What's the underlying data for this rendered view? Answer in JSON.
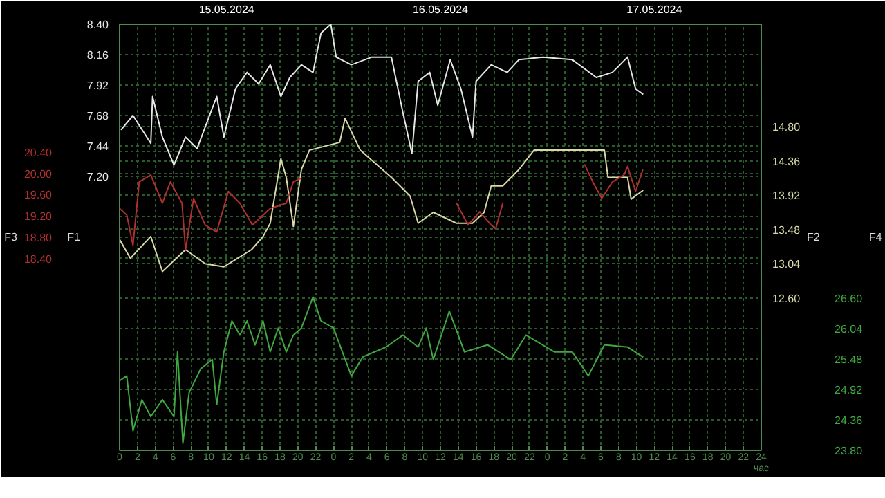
{
  "chart_data": [
    {
      "type": "line",
      "ylabel": "F1",
      "y2label": "F2",
      "xlabel": "час",
      "grid": true,
      "marker": "none",
      "line_style": "solid",
      "xlim": [
        "2024-05-15T00:00",
        "2024-05-18T00:00"
      ],
      "xticks": [
        {
          "value": "2024-05-15T00:00",
          "label": "0"
        },
        {
          "value": "2024-05-15T02:00",
          "label": "2"
        },
        {
          "value": "2024-05-15T04:00",
          "label": "4"
        },
        {
          "value": "2024-05-15T06:00",
          "label": "6"
        },
        {
          "value": "2024-05-15T08:00",
          "label": "8"
        },
        {
          "value": "2024-05-15T10:00",
          "label": "10"
        },
        {
          "value": "2024-05-15T12:00",
          "label": "12"
        },
        {
          "value": "2024-05-15T14:00",
          "label": "14"
        },
        {
          "value": "2024-05-15T16:00",
          "label": "16"
        },
        {
          "value": "2024-05-15T18:00",
          "label": "18"
        },
        {
          "value": "2024-05-15T20:00",
          "label": "20"
        },
        {
          "value": "2024-05-15T22:00",
          "label": "22"
        },
        {
          "value": "2024-05-16T00:00",
          "label": "0"
        },
        {
          "value": "2024-05-16T02:00",
          "label": "2"
        },
        {
          "value": "2024-05-16T04:00",
          "label": "4"
        },
        {
          "value": "2024-05-16T06:00",
          "label": "6"
        },
        {
          "value": "2024-05-16T08:00",
          "label": "8"
        },
        {
          "value": "2024-05-16T10:00",
          "label": "10"
        },
        {
          "value": "2024-05-16T12:00",
          "label": "12"
        },
        {
          "value": "2024-05-16T14:00",
          "label": "14"
        },
        {
          "value": "2024-05-16T16:00",
          "label": "16"
        },
        {
          "value": "2024-05-16T18:00",
          "label": "18"
        },
        {
          "value": "2024-05-16T20:00",
          "label": "20"
        },
        {
          "value": "2024-05-16T22:00",
          "label": "22"
        },
        {
          "value": "2024-05-17T00:00",
          "label": "0"
        },
        {
          "value": "2024-05-17T02:00",
          "label": "2"
        },
        {
          "value": "2024-05-17T04:00",
          "label": "4"
        },
        {
          "value": "2024-05-17T06:00",
          "label": "6"
        },
        {
          "value": "2024-05-17T08:00",
          "label": "8"
        },
        {
          "value": "2024-05-17T10:00",
          "label": "10"
        },
        {
          "value": "2024-05-17T12:00",
          "label": "12"
        },
        {
          "value": "2024-05-17T14:00",
          "label": "14"
        },
        {
          "value": "2024-05-17T16:00",
          "label": "16"
        },
        {
          "value": "2024-05-17T18:00",
          "label": "18"
        },
        {
          "value": "2024-05-17T20:00",
          "label": "20"
        },
        {
          "value": "2024-05-17T22:00",
          "label": "22"
        },
        {
          "value": "2024-05-18T00:00",
          "label": "24"
        }
      ],
      "x2lim": [
        "2024-05-15T00:00",
        "2024-05-18T00:00"
      ],
      "x2ticks": [
        {
          "value": "2024-05-15T12:00",
          "label": "15.05.2024"
        },
        {
          "value": "2024-05-16T12:00",
          "label": "16.05.2024"
        },
        {
          "value": "2024-05-17T12:00",
          "label": "17.05.2024"
        }
      ],
      "ylim": [
        5.04,
        8.4
      ],
      "yticks": [
        {
          "value": 8.4,
          "label": "8.40"
        },
        {
          "value": 8.16,
          "label": "8.16"
        },
        {
          "value": 7.92,
          "label": "7.92"
        },
        {
          "value": 7.68,
          "label": "7.68"
        },
        {
          "value": 7.44,
          "label": "7.44"
        },
        {
          "value": 7.2,
          "label": "7.20"
        }
      ],
      "y2lim": [
        10.64,
        16.12
      ],
      "y2ticks": [
        {
          "value": 14.8,
          "label": "14.80"
        },
        {
          "value": 14.36,
          "label": "14.36"
        },
        {
          "value": 13.92,
          "label": "13.92"
        },
        {
          "value": 13.48,
          "label": "13.48"
        },
        {
          "value": 13.04,
          "label": "13.04"
        },
        {
          "value": 12.6,
          "label": "12.60"
        }
      ],
      "series": [
        {
          "color": "#e6e6e6",
          "x": [
            "2024-05-15T00:12",
            "2024-05-15T01:30",
            "2024-05-15T03:30",
            "2024-05-15T03:42",
            "2024-05-15T04:48",
            "2024-05-15T06:06",
            "2024-05-15T07:24",
            "2024-05-15T08:42",
            "2024-05-15T10:54",
            "2024-05-15T11:42",
            "2024-05-15T13:00",
            "2024-05-15T14:18",
            "2024-05-15T15:36",
            "2024-05-15T16:54",
            "2024-05-15T18:06",
            "2024-05-15T19:06",
            "2024-05-15T20:24",
            "2024-05-15T21:42",
            "2024-05-15T22:36",
            "2024-05-15T23:42",
            "2024-05-16T00:18",
            "2024-05-16T02:00",
            "2024-05-16T04:18",
            "2024-05-16T06:30",
            "2024-05-16T07:48",
            "2024-05-16T08:48",
            "2024-05-16T09:30",
            "2024-05-16T10:48",
            "2024-05-16T11:42",
            "2024-05-16T13:06",
            "2024-05-16T14:18",
            "2024-05-16T15:36",
            "2024-05-16T16:00",
            "2024-05-16T17:42",
            "2024-05-16T19:30",
            "2024-05-16T20:48",
            "2024-05-16T23:30",
            "2024-05-17T02:48",
            "2024-05-17T05:30",
            "2024-05-17T07:18",
            "2024-05-17T09:00",
            "2024-05-17T09:54",
            "2024-05-17T10:42"
          ],
          "values": [
            7.57,
            7.68,
            7.46,
            7.83,
            7.51,
            7.29,
            7.51,
            7.42,
            7.83,
            7.51,
            7.89,
            8.02,
            7.93,
            8.08,
            7.83,
            7.98,
            8.08,
            8.02,
            8.33,
            8.4,
            8.14,
            8.08,
            8.14,
            8.14,
            7.7,
            7.38,
            7.95,
            8.02,
            7.76,
            8.12,
            7.89,
            7.51,
            7.95,
            8.08,
            8.02,
            8.12,
            8.14,
            8.12,
            7.98,
            8.02,
            8.14,
            7.89,
            7.85
          ]
        },
        {
          "color": "#d8d8a8",
          "axis": "y2",
          "x": [
            "2024-05-15T00:00",
            "2024-05-15T01:12",
            "2024-05-15T03:30",
            "2024-05-15T04:48",
            "2024-05-15T07:24",
            "2024-05-15T09:36",
            "2024-05-15T11:42",
            "2024-05-15T14:48",
            "2024-05-15T16:06",
            "2024-05-15T16:54",
            "2024-05-15T18:06",
            "2024-05-15T18:42",
            "2024-05-15T19:30",
            "2024-05-15T20:24",
            "2024-05-15T21:18",
            "2024-05-16T00:42",
            "2024-05-16T01:18",
            "2024-05-16T03:00",
            "2024-05-16T06:30",
            "2024-05-16T08:36",
            "2024-05-16T09:30",
            "2024-05-16T11:12",
            "2024-05-16T13:48",
            "2024-05-16T15:36",
            "2024-05-16T16:54",
            "2024-05-16T17:42",
            "2024-05-16T19:00",
            "2024-05-16T20:48",
            "2024-05-16T22:30",
            "2024-05-17T02:48",
            "2024-05-17T06:24",
            "2024-05-17T06:48",
            "2024-05-17T09:00",
            "2024-05-17T09:24",
            "2024-05-17T10:42"
          ],
          "values": [
            13.35,
            13.11,
            13.39,
            12.94,
            13.22,
            13.04,
            13.0,
            13.22,
            13.39,
            13.56,
            14.39,
            14.15,
            13.52,
            14.25,
            14.5,
            14.6,
            14.91,
            14.5,
            14.15,
            13.91,
            13.56,
            13.7,
            13.56,
            13.56,
            13.7,
            14.04,
            14.04,
            14.25,
            14.5,
            14.5,
            14.5,
            14.15,
            14.15,
            13.87,
            13.98
          ]
        }
      ]
    },
    {
      "type": "line",
      "ylabel": "F3",
      "y2label": "F4",
      "grid": true,
      "marker": "none",
      "line_style": "solid",
      "tick_labels": "y",
      "xlim": [
        "2024-05-15T00:00",
        "2024-05-18T00:00"
      ],
      "ylim": [
        14.8,
        22.8
      ],
      "yticks": [
        {
          "value": 20.4,
          "label": "20.40"
        },
        {
          "value": 20.0,
          "label": "20.00"
        },
        {
          "value": 19.6,
          "label": "19.60"
        },
        {
          "value": 19.2,
          "label": "19.20"
        },
        {
          "value": 18.8,
          "label": "18.80"
        },
        {
          "value": 18.4,
          "label": "18.40"
        }
      ],
      "y2lim": [
        23.8,
        31.64
      ],
      "y2ticks": [
        {
          "value": 26.6,
          "label": "26.60"
        },
        {
          "value": 26.04,
          "label": "26.04"
        },
        {
          "value": 25.48,
          "label": "25.48"
        },
        {
          "value": 24.92,
          "label": "24.92"
        },
        {
          "value": 24.36,
          "label": "24.36"
        },
        {
          "value": 23.8,
          "label": "23.80"
        }
      ],
      "series": [
        {
          "color": "#b03030",
          "x": [
            "2024-05-15T00:00",
            "2024-05-15T00:48",
            "2024-05-15T01:30",
            "2024-05-15T02:12",
            "2024-05-15T03:30",
            "2024-05-15T04:48",
            "2024-05-15T05:42",
            "2024-05-15T07:00",
            "2024-05-15T07:24",
            "2024-05-15T08:18",
            "2024-05-15T09:36",
            "2024-05-15T10:54",
            "2024-05-15T12:12",
            "2024-05-15T13:30",
            "2024-05-15T14:54",
            "2024-05-15T16:54",
            "2024-05-15T18:42",
            "2024-05-15T19:30",
            "2024-05-15T20:24",
            "2024-05-16T06:00",
            "2024-05-16T13:48",
            "2024-05-16T15:06",
            "2024-05-16T16:24",
            "2024-05-16T17:42",
            "2024-05-16T18:12",
            "2024-05-16T19:00",
            "2024-05-17T00:00",
            "2024-05-17T04:12",
            "2024-05-17T05:06",
            "2024-05-17T06:06",
            "2024-05-17T07:18",
            "2024-05-17T08:36",
            "2024-05-17T09:00",
            "2024-05-17T09:54",
            "2024-05-17T10:42"
          ],
          "values": [
            19.34,
            19.22,
            18.65,
            19.84,
            19.97,
            19.44,
            19.84,
            19.44,
            18.56,
            19.53,
            19.03,
            18.9,
            19.66,
            19.44,
            19.03,
            19.34,
            19.44,
            19.84,
            19.91,
            null,
            19.44,
            19.03,
            19.28,
            19.03,
            18.96,
            19.44,
            null,
            20.16,
            19.84,
            19.53,
            19.84,
            19.97,
            20.13,
            19.66,
            20.06
          ]
        },
        {
          "color": "#40a840",
          "axis": "y2",
          "x": [
            "2024-05-15T00:00",
            "2024-05-15T00:48",
            "2024-05-15T01:30",
            "2024-05-15T02:30",
            "2024-05-15T03:30",
            "2024-05-15T04:48",
            "2024-05-15T06:06",
            "2024-05-15T06:30",
            "2024-05-15T07:06",
            "2024-05-15T07:48",
            "2024-05-15T09:06",
            "2024-05-15T10:24",
            "2024-05-15T10:54",
            "2024-05-15T11:42",
            "2024-05-15T12:36",
            "2024-05-15T13:30",
            "2024-05-15T14:18",
            "2024-05-15T15:12",
            "2024-05-15T16:06",
            "2024-05-15T16:54",
            "2024-05-15T17:48",
            "2024-05-15T18:42",
            "2024-05-15T19:30",
            "2024-05-15T20:24",
            "2024-05-15T21:42",
            "2024-05-15T22:36",
            "2024-05-16T00:00",
            "2024-05-16T02:00",
            "2024-05-16T03:18",
            "2024-05-16T05:54",
            "2024-05-16T07:48",
            "2024-05-16T09:30",
            "2024-05-16T10:24",
            "2024-05-16T11:12",
            "2024-05-16T13:00",
            "2024-05-16T14:42",
            "2024-05-16T17:18",
            "2024-05-16T19:54",
            "2024-05-16T21:36",
            "2024-05-17T00:48",
            "2024-05-17T02:48",
            "2024-05-17T04:36",
            "2024-05-17T06:24",
            "2024-05-17T09:00",
            "2024-05-17T10:42"
          ],
          "values": [
            25.08,
            25.17,
            24.16,
            24.73,
            24.42,
            24.73,
            24.42,
            25.61,
            23.93,
            24.86,
            25.3,
            25.47,
            24.64,
            25.61,
            26.18,
            25.92,
            26.18,
            25.74,
            26.18,
            25.61,
            26.05,
            25.61,
            25.92,
            26.05,
            26.62,
            26.18,
            26.05,
            25.17,
            25.52,
            25.7,
            25.92,
            25.7,
            26.05,
            25.47,
            26.36,
            25.61,
            25.74,
            25.47,
            25.92,
            25.61,
            25.61,
            25.17,
            25.74,
            25.7,
            25.52
          ]
        }
      ]
    }
  ]
}
